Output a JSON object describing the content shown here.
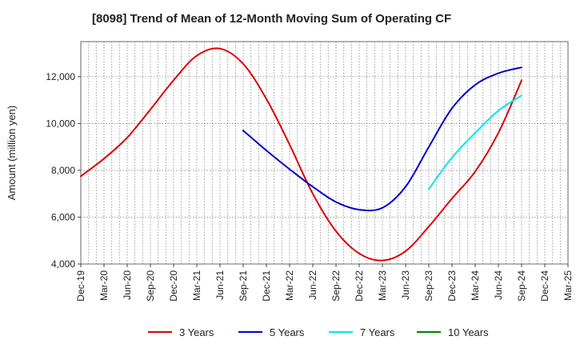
{
  "chart_data": {
    "type": "line",
    "title": "[8098]  Trend of Mean of 12-Month Moving Sum of Operating CF",
    "xlabel": "",
    "ylabel": "Amount (million yen)",
    "ylim": [
      4000,
      13500
    ],
    "yticks": [
      4000,
      6000,
      8000,
      10000,
      12000
    ],
    "ytick_labels": [
      "4,000",
      "6,000",
      "8,000",
      "10,000",
      "12,000"
    ],
    "x_categories": [
      "Dec-19",
      "Mar-20",
      "Jun-20",
      "Sep-20",
      "Dec-20",
      "Mar-21",
      "Jun-21",
      "Sep-21",
      "Dec-21",
      "Mar-22",
      "Jun-22",
      "Sep-22",
      "Dec-22",
      "Mar-23",
      "Jun-23",
      "Sep-23",
      "Dec-23",
      "Mar-24",
      "Jun-24",
      "Sep-24",
      "Dec-24",
      "Mar-25"
    ],
    "grid": true,
    "legend_position": "bottom",
    "series": [
      {
        "name": "3 Years",
        "color": "#dd0000",
        "points": [
          [
            "Dec-19",
            7750
          ],
          [
            "Mar-20",
            8500
          ],
          [
            "Jun-20",
            9400
          ],
          [
            "Sep-20",
            10600
          ],
          [
            "Dec-20",
            11850
          ],
          [
            "Mar-21",
            12900
          ],
          [
            "Jun-21",
            13200
          ],
          [
            "Sep-21",
            12550
          ],
          [
            "Dec-21",
            11050
          ],
          [
            "Mar-22",
            9100
          ],
          [
            "Jun-22",
            7000
          ],
          [
            "Sep-22",
            5400
          ],
          [
            "Dec-22",
            4450
          ],
          [
            "Mar-23",
            4150
          ],
          [
            "Jun-23",
            4550
          ],
          [
            "Sep-23",
            5600
          ],
          [
            "Dec-23",
            6800
          ],
          [
            "Mar-24",
            7950
          ],
          [
            "Jun-24",
            9600
          ],
          [
            "Sep-24",
            11850
          ]
        ]
      },
      {
        "name": "5 Years",
        "color": "#0000cc",
        "points": [
          [
            "Sep-21",
            9700
          ],
          [
            "Dec-21",
            8850
          ],
          [
            "Mar-22",
            8050
          ],
          [
            "Jun-22",
            7300
          ],
          [
            "Sep-22",
            6650
          ],
          [
            "Dec-22",
            6320
          ],
          [
            "Mar-23",
            6400
          ],
          [
            "Jun-23",
            7300
          ],
          [
            "Sep-23",
            9000
          ],
          [
            "Dec-23",
            10650
          ],
          [
            "Mar-24",
            11650
          ],
          [
            "Jun-24",
            12150
          ],
          [
            "Sep-24",
            12400
          ]
        ]
      },
      {
        "name": "7 Years",
        "color": "#00e5ee",
        "points": [
          [
            "Sep-23",
            7200
          ],
          [
            "Dec-23",
            8550
          ],
          [
            "Mar-24",
            9600
          ],
          [
            "Jun-24",
            10550
          ],
          [
            "Sep-24",
            11200
          ]
        ]
      },
      {
        "name": "10 Years",
        "color": "#008000",
        "points": []
      }
    ]
  }
}
